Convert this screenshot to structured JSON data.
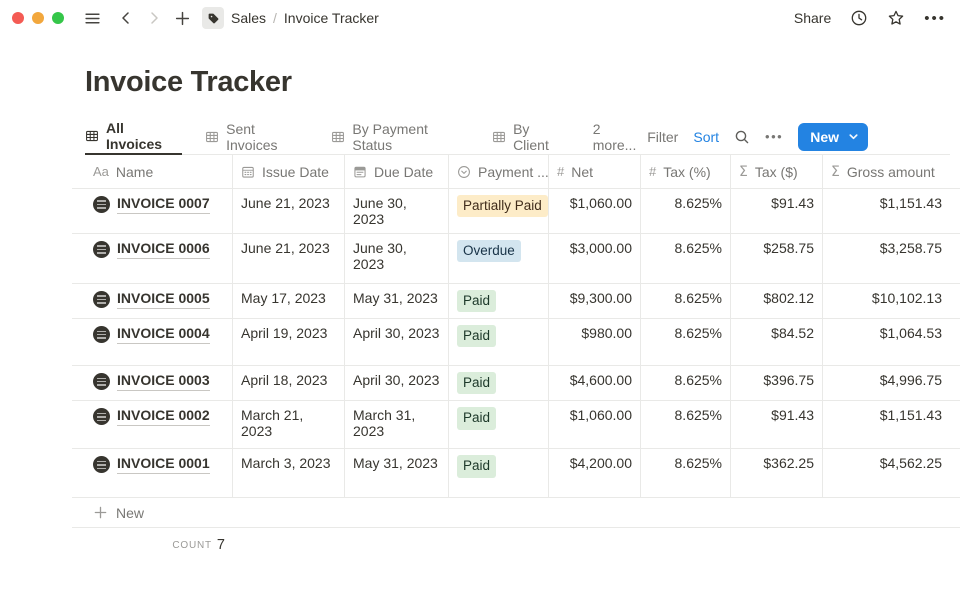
{
  "topbar": {
    "breadcrumb": {
      "workspace": "Sales",
      "divider": "/",
      "page": "Invoice Tracker"
    },
    "share_label": "Share"
  },
  "page_title": "Invoice Tracker",
  "view_tabs": {
    "tabs": [
      {
        "label": "All Invoices",
        "active": true
      },
      {
        "label": "Sent Invoices",
        "active": false
      },
      {
        "label": "By Payment Status",
        "active": false
      },
      {
        "label": "By Client",
        "active": false
      }
    ],
    "more_label": "2 more..."
  },
  "toolbar": {
    "filter_label": "Filter",
    "sort_label": "Sort",
    "new_label": "New"
  },
  "table": {
    "columns": [
      {
        "label": "Name",
        "icon": "text-icon",
        "align": "left"
      },
      {
        "label": "Issue Date",
        "icon": "calendar-icon",
        "align": "left"
      },
      {
        "label": "Due Date",
        "icon": "calendar-alt-icon",
        "align": "left"
      },
      {
        "label": "Payment ...",
        "icon": "select-icon",
        "align": "left"
      },
      {
        "label": "Net",
        "icon": "number-icon",
        "align": "right"
      },
      {
        "label": "Tax (%)",
        "icon": "number-icon",
        "align": "right"
      },
      {
        "label": "Tax ($)",
        "icon": "formula-icon",
        "align": "right"
      },
      {
        "label": "Gross amount",
        "icon": "formula-icon",
        "align": "right"
      }
    ],
    "rows": [
      {
        "name": "INVOICE 0007",
        "issue_date": "June 21, 2023",
        "due_date": "June 30, 2023",
        "payment_status": "Partially Paid",
        "payment_status_color": "yellow",
        "net": "$1,060.00",
        "tax_pct": "8.625%",
        "tax_usd": "$91.43",
        "gross_amount": "$1,151.43"
      },
      {
        "name": "INVOICE 0006",
        "issue_date": "June 21, 2023",
        "due_date": "June 30, 2023",
        "payment_status": "Overdue",
        "payment_status_color": "blue",
        "net": "$3,000.00",
        "tax_pct": "8.625%",
        "tax_usd": "$258.75",
        "gross_amount": "$3,258.75"
      },
      {
        "name": "INVOICE 0005",
        "issue_date": "May 17, 2023",
        "due_date": "May 31, 2023",
        "payment_status": "Paid",
        "payment_status_color": "green",
        "net": "$9,300.00",
        "tax_pct": "8.625%",
        "tax_usd": "$802.12",
        "gross_amount": "$10,102.13"
      },
      {
        "name": "INVOICE 0004",
        "issue_date": "April 19, 2023",
        "due_date": "April 30, 2023",
        "payment_status": "Paid",
        "payment_status_color": "green",
        "net": "$980.00",
        "tax_pct": "8.625%",
        "tax_usd": "$84.52",
        "gross_amount": "$1,064.53"
      },
      {
        "name": "INVOICE 0003",
        "issue_date": "April 18, 2023",
        "due_date": "April 30, 2023",
        "payment_status": "Paid",
        "payment_status_color": "green",
        "net": "$4,600.00",
        "tax_pct": "8.625%",
        "tax_usd": "$396.75",
        "gross_amount": "$4,996.75"
      },
      {
        "name": "INVOICE 0002",
        "issue_date": "March 21, 2023",
        "due_date": "March 31, 2023",
        "payment_status": "Paid",
        "payment_status_color": "green",
        "net": "$1,060.00",
        "tax_pct": "8.625%",
        "tax_usd": "$91.43",
        "gross_amount": "$1,151.43"
      },
      {
        "name": "INVOICE 0001",
        "issue_date": "March 3, 2023",
        "due_date": "May 31, 2023",
        "payment_status": "Paid",
        "payment_status_color": "green",
        "net": "$4,200.00",
        "tax_pct": "8.625%",
        "tax_usd": "$362.25",
        "gross_amount": "$4,562.25"
      }
    ],
    "new_row_label": "New",
    "calculation": {
      "label": "COUNT",
      "value": "7"
    }
  },
  "colors": {
    "accent_blue": "#2383e2",
    "status": {
      "yellow": {
        "bg": "#fdecc8",
        "text": "#402c1b"
      },
      "blue": {
        "bg": "#d3e5ef",
        "text": "#183347"
      },
      "green": {
        "bg": "#dbeddb",
        "text": "#1c3829"
      }
    }
  }
}
